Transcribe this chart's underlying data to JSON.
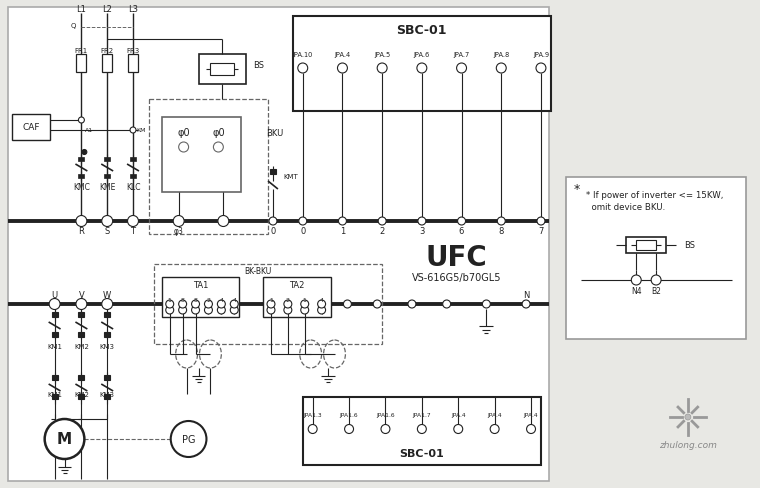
{
  "bg_color": "#e8e8e4",
  "main_fill": "#ffffff",
  "line_color": "#222222",
  "gray_color": "#666666",
  "note_fill": "#ffffff",
  "title_ufc": "UFC",
  "title_sub": "VS-616G5/b70GL5",
  "note_line1": "* If power of inverter <= 15KW,",
  "note_line2": "  omit device BKU.",
  "SBC01_label": "SBC-01",
  "watermark": "zhulong.com",
  "top_terminals": [
    "JPA.10",
    "JPA.4",
    "JPA.5",
    "JPA.6",
    "JPA.7",
    "JPA.8",
    "JPA.9"
  ],
  "top_nums": [
    "0",
    "1",
    "2",
    "3",
    "6",
    "8",
    "7"
  ],
  "bot_terminals": [
    "JPA1.3",
    "JPA1.6",
    "JPA1.6",
    "JPA1.7",
    "JPA.4",
    "JPA.4",
    "JPA.4"
  ],
  "UFC_fontsize": 20,
  "sub_fontsize": 7
}
